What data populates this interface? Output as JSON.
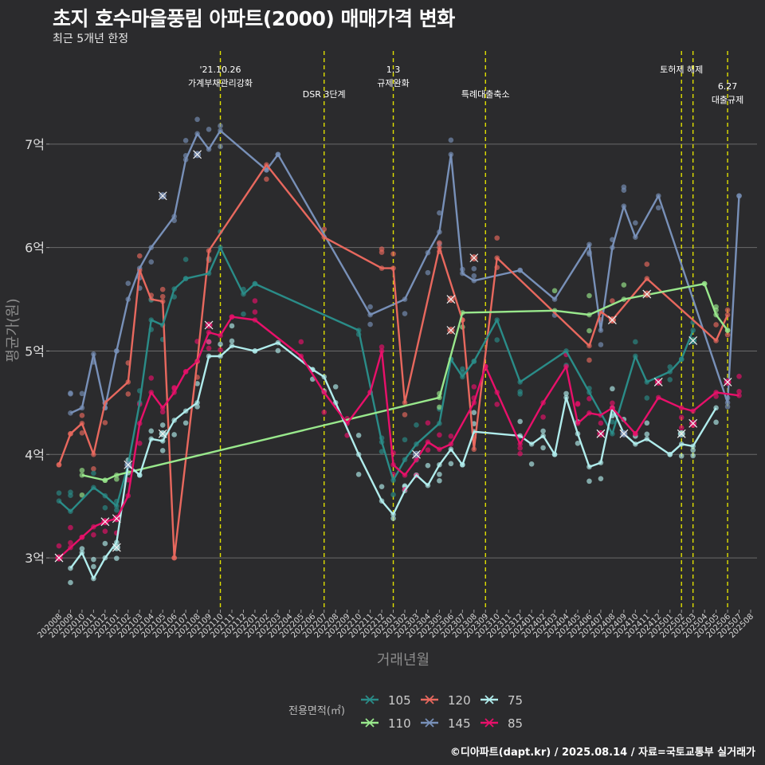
{
  "title": "초지 호수마을풍림 아파트(2000) 매매가격 변화",
  "subtitle": "최근 5개년 한정",
  "caption": "©디아파트(dapt.kr) / 2025.08.14 / 자료=국토교통부 실거래가",
  "chart_data": {
    "type": "line",
    "xlabel": "거래년월",
    "ylabel": "평균가(원)",
    "yticks": [
      {
        "v": 3,
        "label": "3억"
      },
      {
        "v": 4,
        "label": "4억"
      },
      {
        "v": 5,
        "label": "5억"
      },
      {
        "v": 6,
        "label": "6억"
      },
      {
        "v": 7,
        "label": "7억"
      }
    ],
    "ylim": [
      2.5,
      7.9
    ],
    "x_start": "202008",
    "x_end": "202508",
    "legend_title": "전용면적(㎡)",
    "colors": {
      "105": "#2a8c88",
      "110": "#99e88c",
      "120": "#e8685e",
      "145": "#7890b8",
      "75": "#b0ecec",
      "85": "#e8106a"
    },
    "legend": [
      {
        "key": "105",
        "label": "105"
      },
      {
        "key": "120",
        "label": "120"
      },
      {
        "key": "75",
        "label": "75"
      },
      {
        "key": "110",
        "label": "110"
      },
      {
        "key": "145",
        "label": "145"
      },
      {
        "key": "85",
        "label": "85"
      }
    ],
    "events": [
      {
        "x": "202110",
        "label": "'21.10.26\n가계부채관리강화",
        "row": 1
      },
      {
        "x": "202207",
        "label": "DSR 3단계",
        "row": 2
      },
      {
        "x": "202301",
        "label": "1.3\n규제완화",
        "row": 1
      },
      {
        "x": "202309",
        "label": "특례대출축소",
        "row": 2
      },
      {
        "x": "202502",
        "label": "토허제 해제",
        "row": 1
      },
      {
        "x": "202503",
        "label": "",
        "row": 1
      },
      {
        "x": "202506",
        "label": "6.27\n대출규제",
        "row": 3
      }
    ],
    "series": [
      {
        "name": "145",
        "points": [
          [
            "202009",
            4.4
          ],
          [
            "202010",
            4.45
          ],
          [
            "202011",
            4.97
          ],
          [
            "202012",
            4.45
          ],
          [
            "202101",
            5.0
          ],
          [
            "202102",
            5.5
          ],
          [
            "202103",
            5.8
          ],
          [
            "202104",
            6.0
          ],
          [
            "202106",
            6.3
          ],
          [
            "202107",
            6.85
          ],
          [
            "202108",
            7.1
          ],
          [
            "202109",
            6.95
          ],
          [
            "202110",
            7.13
          ],
          [
            "202202",
            6.75
          ],
          [
            "202203",
            6.9
          ],
          [
            "202211",
            5.35
          ],
          [
            "202302",
            5.5
          ],
          [
            "202304",
            5.95
          ],
          [
            "202305",
            6.15
          ],
          [
            "202306",
            6.9
          ],
          [
            "202307",
            5.75
          ],
          [
            "202308",
            5.68
          ],
          [
            "202312",
            5.78
          ],
          [
            "202403",
            5.5
          ],
          [
            "202406",
            6.03
          ],
          [
            "202407",
            5.2
          ],
          [
            "202408",
            6.0
          ],
          [
            "202409",
            6.4
          ],
          [
            "202410",
            6.1
          ],
          [
            "202412",
            6.5
          ],
          [
            "202506",
            4.5
          ],
          [
            "202507",
            6.5
          ]
        ]
      },
      {
        "name": "120",
        "points": [
          [
            "202008",
            3.9
          ],
          [
            "202009",
            4.2
          ],
          [
            "202010",
            4.3
          ],
          [
            "202011",
            4.0
          ],
          [
            "202012",
            4.5
          ],
          [
            "202102",
            4.7
          ],
          [
            "202103",
            5.78
          ],
          [
            "202104",
            5.5
          ],
          [
            "202105",
            5.48
          ],
          [
            "202106",
            3.0
          ],
          [
            "202108",
            4.9
          ],
          [
            "202109",
            5.97
          ],
          [
            "202202",
            6.8
          ],
          [
            "202207",
            6.1
          ],
          [
            "202212",
            5.8
          ],
          [
            "202301",
            5.8
          ],
          [
            "202302",
            4.5
          ],
          [
            "202305",
            6.0
          ],
          [
            "202307",
            5.3
          ],
          [
            "202308",
            4.05
          ],
          [
            "202310",
            5.9
          ],
          [
            "202406",
            5.05
          ],
          [
            "202407",
            5.38
          ],
          [
            "202408",
            5.3
          ],
          [
            "202411",
            5.7
          ],
          [
            "202505",
            5.1
          ],
          [
            "202506",
            5.35
          ]
        ]
      },
      {
        "name": "105",
        "points": [
          [
            "202008",
            3.55
          ],
          [
            "202009",
            3.45
          ],
          [
            "202011",
            3.68
          ],
          [
            "202012",
            3.6
          ],
          [
            "202101",
            3.5
          ],
          [
            "202102",
            3.9
          ],
          [
            "202103",
            4.5
          ],
          [
            "202104",
            5.3
          ],
          [
            "202105",
            5.25
          ],
          [
            "202106",
            5.6
          ],
          [
            "202107",
            5.7
          ],
          [
            "202109",
            5.75
          ],
          [
            "202110",
            6.0
          ],
          [
            "202112",
            5.55
          ],
          [
            "202201",
            5.65
          ],
          [
            "202210",
            5.2
          ],
          [
            "202212",
            4.12
          ],
          [
            "202301",
            3.75
          ],
          [
            "202302",
            3.95
          ],
          [
            "202303",
            4.1
          ],
          [
            "202305",
            4.3
          ],
          [
            "202306",
            4.92
          ],
          [
            "202307",
            4.75
          ],
          [
            "202308",
            4.9
          ],
          [
            "202310",
            5.3
          ],
          [
            "202312",
            4.7
          ],
          [
            "202404",
            5.0
          ],
          [
            "202406",
            4.6
          ],
          [
            "202408",
            4.2
          ],
          [
            "202410",
            4.95
          ],
          [
            "202411",
            4.7
          ],
          [
            "202501",
            4.8
          ],
          [
            "202502",
            4.92
          ],
          [
            "202503",
            5.2
          ]
        ]
      },
      {
        "name": "110",
        "points": [
          [
            "202010",
            3.8
          ],
          [
            "202012",
            3.75
          ],
          [
            "202101",
            3.8
          ],
          [
            "202305",
            4.55
          ],
          [
            "202307",
            5.37
          ],
          [
            "202403",
            5.39
          ],
          [
            "202406",
            5.35
          ],
          [
            "202409",
            5.5
          ],
          [
            "202504",
            5.65
          ],
          [
            "202505",
            5.35
          ],
          [
            "202506",
            5.2
          ]
        ]
      },
      {
        "name": "75",
        "points": [
          [
            "202009",
            2.9
          ],
          [
            "202010",
            3.05
          ],
          [
            "202011",
            2.8
          ],
          [
            "202012",
            3.0
          ],
          [
            "202101",
            3.15
          ],
          [
            "202102",
            3.9
          ],
          [
            "202103",
            3.8
          ],
          [
            "202104",
            4.15
          ],
          [
            "202105",
            4.13
          ],
          [
            "202106",
            4.33
          ],
          [
            "202107",
            4.42
          ],
          [
            "202108",
            4.5
          ],
          [
            "202109",
            4.95
          ],
          [
            "202110",
            4.95
          ],
          [
            "202111",
            5.05
          ],
          [
            "202201",
            5.0
          ],
          [
            "202203",
            5.08
          ],
          [
            "202206",
            4.82
          ],
          [
            "202207",
            4.75
          ],
          [
            "202208",
            4.5
          ],
          [
            "202210",
            4.0
          ],
          [
            "202212",
            3.55
          ],
          [
            "202301",
            3.42
          ],
          [
            "202302",
            3.65
          ],
          [
            "202303",
            3.8
          ],
          [
            "202304",
            3.7
          ],
          [
            "202305",
            3.9
          ],
          [
            "202306",
            4.05
          ],
          [
            "202307",
            3.9
          ],
          [
            "202308",
            4.22
          ],
          [
            "202312",
            4.18
          ],
          [
            "202401",
            4.1
          ],
          [
            "202402",
            4.18
          ],
          [
            "202403",
            4.0
          ],
          [
            "202404",
            4.55
          ],
          [
            "202405",
            4.2
          ],
          [
            "202406",
            3.88
          ],
          [
            "202407",
            3.92
          ],
          [
            "202408",
            4.45
          ],
          [
            "202409",
            4.2
          ],
          [
            "202410",
            4.1
          ],
          [
            "202411",
            4.15
          ],
          [
            "202501",
            4.0
          ],
          [
            "202502",
            4.1
          ],
          [
            "202503",
            4.08
          ],
          [
            "202505",
            4.45
          ]
        ]
      },
      {
        "name": "85",
        "points": [
          [
            "202008",
            3.0
          ],
          [
            "202009",
            3.1
          ],
          [
            "202010",
            3.2
          ],
          [
            "202011",
            3.3
          ],
          [
            "202012",
            3.35
          ],
          [
            "202101",
            3.38
          ],
          [
            "202102",
            3.6
          ],
          [
            "202103",
            4.3
          ],
          [
            "202104",
            4.6
          ],
          [
            "202105",
            4.45
          ],
          [
            "202106",
            4.6
          ],
          [
            "202107",
            4.8
          ],
          [
            "202108",
            4.9
          ],
          [
            "202109",
            5.18
          ],
          [
            "202110",
            5.15
          ],
          [
            "202111",
            5.33
          ],
          [
            "202201",
            5.3
          ],
          [
            "202205",
            4.95
          ],
          [
            "202207",
            4.6
          ],
          [
            "202209",
            4.3
          ],
          [
            "202211",
            4.6
          ],
          [
            "202212",
            5.0
          ],
          [
            "202301",
            3.9
          ],
          [
            "202302",
            3.8
          ],
          [
            "202303",
            3.95
          ],
          [
            "202304",
            4.12
          ],
          [
            "202305",
            4.05
          ],
          [
            "202306",
            4.1
          ],
          [
            "202308",
            4.5
          ],
          [
            "202309",
            4.85
          ],
          [
            "202310",
            4.6
          ],
          [
            "202312",
            4.1
          ],
          [
            "202402",
            4.5
          ],
          [
            "202404",
            4.85
          ],
          [
            "202405",
            4.3
          ],
          [
            "202406",
            4.4
          ],
          [
            "202407",
            4.38
          ],
          [
            "202408",
            4.45
          ],
          [
            "202410",
            4.2
          ],
          [
            "202412",
            4.55
          ],
          [
            "202502",
            4.45
          ],
          [
            "202503",
            4.42
          ],
          [
            "202505",
            4.6
          ],
          [
            "202507",
            4.57
          ]
        ]
      }
    ],
    "marked_points": [
      [
        "145",
        "202102",
        3.9
      ],
      [
        "145",
        "202105",
        6.5
      ],
      [
        "145",
        "202108",
        6.9
      ],
      [
        "145",
        "202303",
        4.0
      ],
      [
        "145",
        "202409",
        4.2
      ],
      [
        "120",
        "202308",
        5.9
      ],
      [
        "120",
        "202306",
        5.5
      ],
      [
        "120",
        "202306",
        5.2
      ],
      [
        "120",
        "202408",
        5.3
      ],
      [
        "120",
        "202411",
        5.55
      ],
      [
        "105",
        "202503",
        5.1
      ],
      [
        "75",
        "202101",
        3.1
      ],
      [
        "75",
        "202105",
        4.2
      ],
      [
        "75",
        "202502",
        4.2
      ],
      [
        "85",
        "202008",
        3.0
      ],
      [
        "85",
        "202012",
        3.35
      ],
      [
        "85",
        "202101",
        3.38
      ],
      [
        "85",
        "202109",
        5.25
      ],
      [
        "85",
        "202407",
        4.2
      ],
      [
        "85",
        "202412",
        4.7
      ],
      [
        "85",
        "202503",
        4.3
      ],
      [
        "85",
        "202506",
        4.7
      ]
    ]
  }
}
